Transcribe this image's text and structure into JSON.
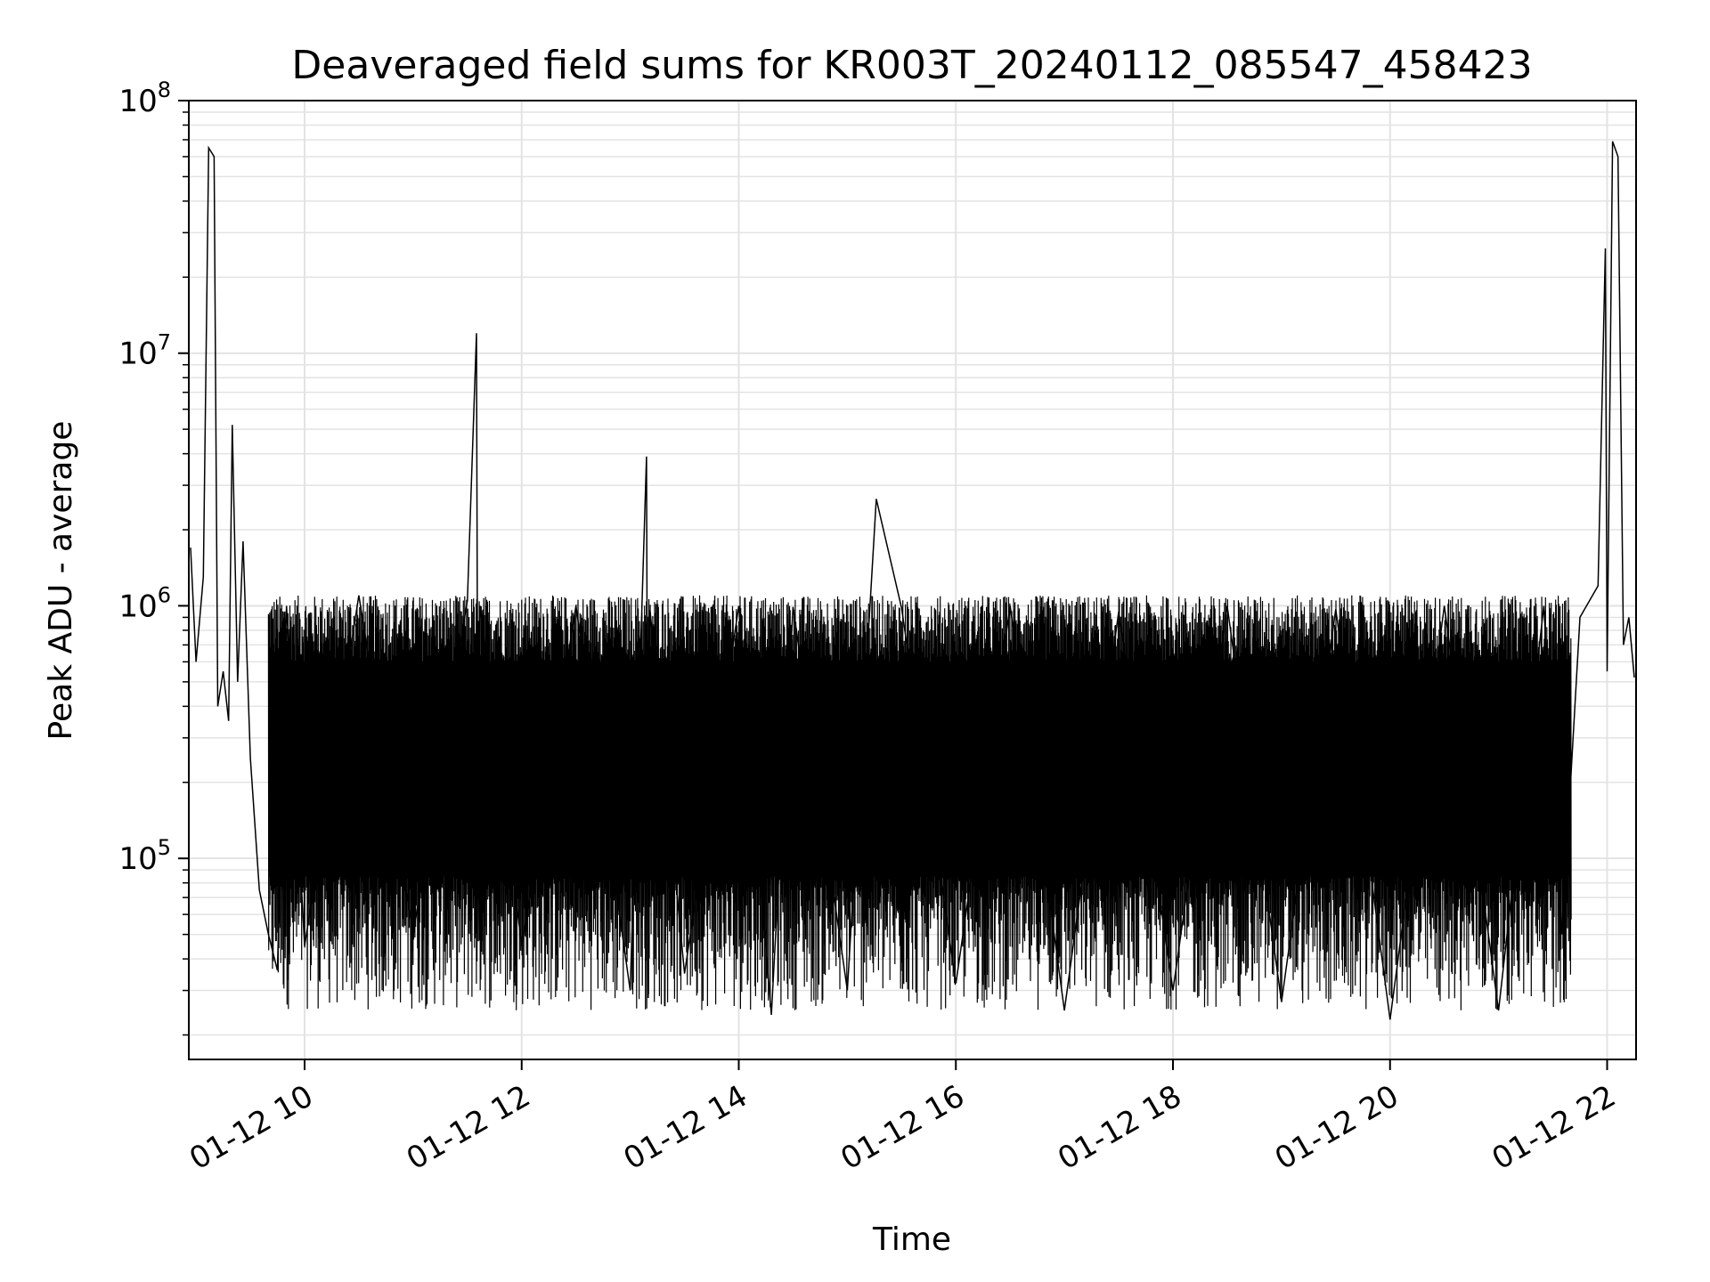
{
  "chart_data": {
    "type": "line",
    "title": "Deaveraged field sums for KR003T_20240112_085547_458423",
    "xlabel": "Time",
    "ylabel": "Peak ADU - average",
    "y_scale": "log",
    "ylim": [
      16000,
      100000000
    ],
    "xlim": [
      "2024-01-12 08:56",
      "2024-01-12 22:16"
    ],
    "grid": true,
    "line_color": "#000000",
    "grid_color": "#e3e3e3",
    "x_ticks": [
      {
        "value": "2024-01-12 10:00",
        "label": "01-12 10"
      },
      {
        "value": "2024-01-12 12:00",
        "label": "01-12 12"
      },
      {
        "value": "2024-01-12 14:00",
        "label": "01-12 14"
      },
      {
        "value": "2024-01-12 16:00",
        "label": "01-12 16"
      },
      {
        "value": "2024-01-12 18:00",
        "label": "01-12 18"
      },
      {
        "value": "2024-01-12 20:00",
        "label": "01-12 20"
      },
      {
        "value": "2024-01-12 22:00",
        "label": "01-12 22"
      }
    ],
    "y_ticks": [
      {
        "value": 100000,
        "base": "10",
        "exp": "5"
      },
      {
        "value": 1000000,
        "base": "10",
        "exp": "6"
      },
      {
        "value": 10000000,
        "base": "10",
        "exp": "7"
      },
      {
        "value": 100000000,
        "base": "10",
        "exp": "8"
      }
    ],
    "series": [
      {
        "x": [
          "2024-01-12 08:57",
          "2024-01-12 09:00",
          "2024-01-12 09:04",
          "2024-01-12 09:07",
          "2024-01-12 09:10",
          "2024-01-12 09:12",
          "2024-01-12 09:15",
          "2024-01-12 09:18",
          "2024-01-12 09:20",
          "2024-01-12 09:23",
          "2024-01-12 09:26",
          "2024-01-12 09:30",
          "2024-01-12 09:35",
          "2024-01-12 09:40",
          "2024-01-12 09:45",
          "2024-01-12 09:50",
          "2024-01-12 10:00",
          "2024-01-12 10:30",
          "2024-01-12 11:00",
          "2024-01-12 11:30",
          "2024-01-12 11:35",
          "2024-01-12 11:36",
          "2024-01-12 11:37",
          "2024-01-12 12:00",
          "2024-01-12 12:30",
          "2024-01-12 13:00",
          "2024-01-12 13:09",
          "2024-01-12 13:10",
          "2024-01-12 13:11",
          "2024-01-12 13:30",
          "2024-01-12 14:00",
          "2024-01-12 14:18",
          "2024-01-12 14:30",
          "2024-01-12 15:00",
          "2024-01-12 15:16",
          "2024-01-12 15:30",
          "2024-01-12 16:00",
          "2024-01-12 16:30",
          "2024-01-12 17:00",
          "2024-01-12 17:30",
          "2024-01-12 18:00",
          "2024-01-12 18:30",
          "2024-01-12 19:00",
          "2024-01-12 19:30",
          "2024-01-12 20:00",
          "2024-01-12 20:30",
          "2024-01-12 21:00",
          "2024-01-12 21:25",
          "2024-01-12 21:35",
          "2024-01-12 21:45",
          "2024-01-12 21:55",
          "2024-01-12 21:59",
          "2024-01-12 22:00",
          "2024-01-12 22:03",
          "2024-01-12 22:06",
          "2024-01-12 22:09",
          "2024-01-12 22:12",
          "2024-01-12 22:15"
        ],
        "y": [
          1700000,
          600000,
          1300000,
          65000000,
          60000000,
          400000,
          550000,
          350000,
          5200000,
          500000,
          1800000,
          250000,
          75000,
          50000,
          36000,
          1000000,
          45000,
          1100000,
          50000,
          1050000,
          12000000,
          47000,
          1000000,
          45000,
          1000000,
          30000,
          3900000,
          28000,
          950000,
          35000,
          1000000,
          24000,
          990000,
          30000,
          2650000,
          980000,
          32000,
          1000000,
          25000,
          950000,
          30000,
          1000000,
          27000,
          970000,
          23000,
          1000000,
          25000,
          1000000,
          50000,
          900000,
          1200000,
          26000000,
          550000,
          69000000,
          60000000,
          700000,
          900000,
          520000
        ]
      }
    ]
  }
}
